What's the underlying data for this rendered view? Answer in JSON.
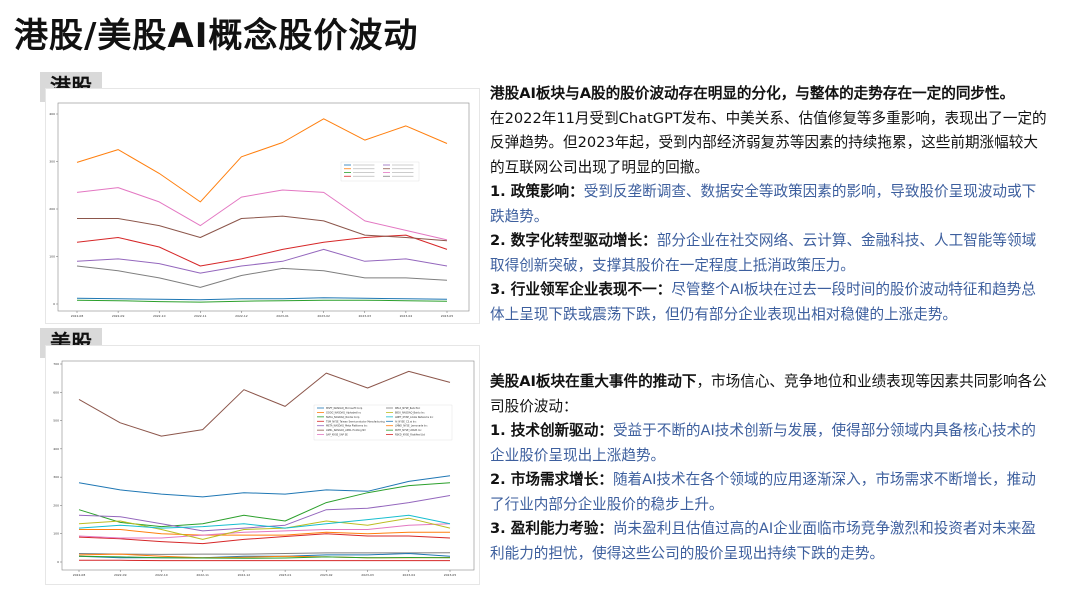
{
  "title": "港股/美股AI概念股价波动",
  "hk": {
    "tag": "港股",
    "summary": "港股AI板块与A股的股价波动存在明显的分化，与整体的走势存在一定的同步性。",
    "body": "在2022年11月受到ChatGPT发布、中美关系、估值修复等多重影响，表现出了一定的反弹趋势。但2023年起，受到内部经济弱复苏等因素的持续拖累，这些前期涨幅较大的互联网公司出现了明显的回撤。",
    "points": [
      {
        "head": "1. 政策影响：",
        "text": "受到反垄断调查、数据安全等政策因素的影响，导致股价呈现波动或下跌趋势。"
      },
      {
        "head": "2. 数字化转型驱动增长：",
        "text": "部分企业在社交网络、云计算、金融科技、人工智能等领域取得创新突破，支撑其股价在一定程度上抵消政策压力。"
      },
      {
        "head": "3. 行业领军企业表现不一：",
        "text": "尽管整个AI板块在过去一段时间的股价波动特征和趋势总体上呈现下跌或震荡下跌，但仍有部分企业表现出相对稳健的上涨走势。"
      }
    ]
  },
  "us": {
    "tag": "美股",
    "summary_bold": "美股AI板块在重大事件的推动下",
    "summary_rest": "，市场信心、竞争地位和业绩表现等因素共同影响各公司股价波动：",
    "points": [
      {
        "head": "1. 技术创新驱动：",
        "text": "受益于不断的AI技术创新与发展，使得部分领域内具备核心技术的企业股价呈现出上涨趋势。"
      },
      {
        "head": "2. 市场需求增长：",
        "text": "随着AI技术在各个领域的应用逐渐深入，市场需求不断增长，推动了行业内部分企业股价的稳步上升。"
      },
      {
        "head": "3. 盈利能力考验：",
        "text": "尚未盈利且估值过高的AI企业面临市场竞争激烈和投资者对未来盈利能力的担忧，使得这些公司的股价呈现出持续下跌的走势。"
      }
    ]
  },
  "colors": {
    "blue_text": "#3d5f9e",
    "tag_bg": "#d9d9d9"
  },
  "chart_data": [
    {
      "type": "line",
      "x": [
        "2022-08",
        "2022-09",
        "2022-10",
        "2022-11",
        "2022-12",
        "2023-01",
        "2023-02",
        "2023-03",
        "2023-04",
        "2023-05"
      ],
      "ylim": [
        0,
        400
      ],
      "yticks": [
        0,
        100,
        200,
        300,
        400
      ],
      "grid": false,
      "legend": "center-right",
      "series": [
        {
          "color": "#1f77b4",
          "values": [
            12,
            11,
            10,
            9,
            11,
            11,
            13,
            12,
            11,
            10
          ]
        },
        {
          "color": "#ff7f0e",
          "values": [
            298,
            325,
            275,
            215,
            310,
            340,
            390,
            345,
            375,
            338
          ]
        },
        {
          "color": "#2ca02c",
          "values": [
            8,
            7,
            5,
            4,
            6,
            7,
            8,
            8,
            7,
            6
          ]
        },
        {
          "color": "#d62728",
          "values": [
            130,
            140,
            120,
            80,
            95,
            115,
            130,
            140,
            145,
            115
          ]
        },
        {
          "color": "#9467bd",
          "values": [
            90,
            95,
            85,
            65,
            80,
            90,
            115,
            90,
            95,
            80
          ]
        },
        {
          "color": "#8c564b",
          "values": [
            180,
            180,
            165,
            140,
            180,
            185,
            175,
            145,
            140,
            133
          ]
        },
        {
          "color": "#e377c2",
          "values": [
            235,
            245,
            215,
            165,
            225,
            240,
            235,
            175,
            155,
            135
          ]
        },
        {
          "color": "#7f7f7f",
          "values": [
            80,
            70,
            55,
            35,
            60,
            75,
            70,
            55,
            55,
            50
          ]
        }
      ]
    },
    {
      "type": "line",
      "x": [
        "2022-08",
        "2022-09",
        "2022-10",
        "2022-11",
        "2022-12",
        "2023-01",
        "2023-02",
        "2023-03",
        "2023-04",
        "2023-05"
      ],
      "ylim": [
        0,
        700
      ],
      "yticks": [
        0,
        100,
        200,
        300,
        400,
        500,
        600,
        700
      ],
      "grid": false,
      "legend": "center-right",
      "series": [
        {
          "name": "MSFT_NASDAQ_Microsoft Corp",
          "color": "#1f77b4",
          "values": [
            280,
            255,
            240,
            230,
            245,
            240,
            255,
            250,
            285,
            305
          ]
        },
        {
          "name": "GOOG_NASDAQ_Alphabet Inc",
          "color": "#ff7f0e",
          "values": [
            115,
            115,
            100,
            95,
            95,
            95,
            105,
            100,
            105,
            105
          ]
        },
        {
          "name": "NVDA_NASDAQ_Nvidia Corp",
          "color": "#2ca02c",
          "values": [
            185,
            140,
            125,
            135,
            165,
            145,
            210,
            245,
            270,
            280
          ]
        },
        {
          "name": "TSM_NYSE_Taiwan Semiconductor Manufacturing",
          "color": "#d62728",
          "values": [
            88,
            82,
            72,
            65,
            80,
            90,
            100,
            92,
            92,
            85
          ]
        },
        {
          "name": "META_NASDAQ_Meta Platforms Inc",
          "color": "#9467bd",
          "values": [
            165,
            160,
            135,
            110,
            120,
            130,
            185,
            190,
            210,
            235
          ]
        },
        {
          "name": "ASML_NASDAQ_ASML Holding NV",
          "color": "#8c564b",
          "values": [
            575,
            492,
            445,
            468,
            609,
            550,
            668,
            615,
            674,
            635
          ]
        },
        {
          "name": "SAP_NYSE_SAP SE",
          "color": "#e377c2",
          "values": [
            92,
            85,
            85,
            95,
            105,
            110,
            115,
            115,
            130,
            135
          ]
        },
        {
          "name": "RELX_NYSE_Relx PLC",
          "color": "#7f7f7f",
          "values": [
            30,
            28,
            27,
            28,
            28,
            30,
            32,
            32,
            32,
            33
          ]
        },
        {
          "name": "BIDU_NASDAQ_Baidu Inc",
          "color": "#bcbd22",
          "values": [
            135,
            145,
            115,
            80,
            115,
            120,
            145,
            130,
            155,
            120
          ]
        },
        {
          "name": "ANET_NYSE_Arista Networks Inc",
          "color": "#17becf",
          "values": [
            120,
            130,
            120,
            125,
            135,
            120,
            135,
            150,
            165,
            135
          ]
        },
        {
          "name": "AI_NYSE_C3.ai Inc",
          "color": "#1f77b4",
          "values": [
            20,
            15,
            15,
            15,
            20,
            20,
            25,
            25,
            30,
            20
          ]
        },
        {
          "name": "LMND_NYSE_Lemonade Inc",
          "color": "#ff7f0e",
          "values": [
            25,
            28,
            20,
            15,
            17,
            20,
            18,
            15,
            15,
            16
          ]
        },
        {
          "name": "PATH_NYSE_UiPath Inc",
          "color": "#2ca02c",
          "values": [
            20,
            18,
            15,
            14,
            13,
            14,
            18,
            15,
            16,
            15
          ]
        },
        {
          "name": "RSKD_NYSE_Riskified Ltd",
          "color": "#d62728",
          "values": [
            6,
            6,
            5,
            5,
            5,
            5,
            5,
            5,
            5,
            5
          ]
        }
      ]
    }
  ]
}
